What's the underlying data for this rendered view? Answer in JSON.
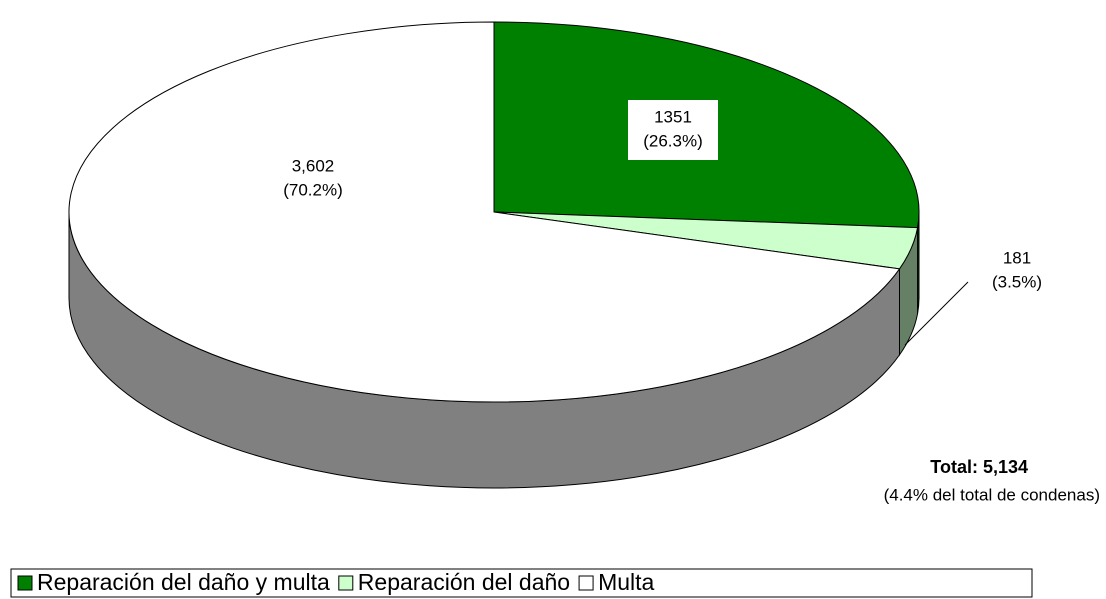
{
  "chart_data": {
    "type": "pie",
    "categories": [
      "Reparación del daño y multa",
      "Reparación del daño",
      "Multa"
    ],
    "values": [
      1351,
      181,
      3602
    ],
    "value_labels": [
      "1351",
      "181",
      "3,602"
    ],
    "percent_labels": [
      "(26.3%)",
      "(3.5%)",
      "(70.2%)"
    ],
    "colors": [
      "#008000",
      "#ccffcc",
      "#ffffff"
    ],
    "annotations": [
      "Total: 5,134",
      "(4.4% del total de condenas)"
    ],
    "legend": "bottom"
  }
}
